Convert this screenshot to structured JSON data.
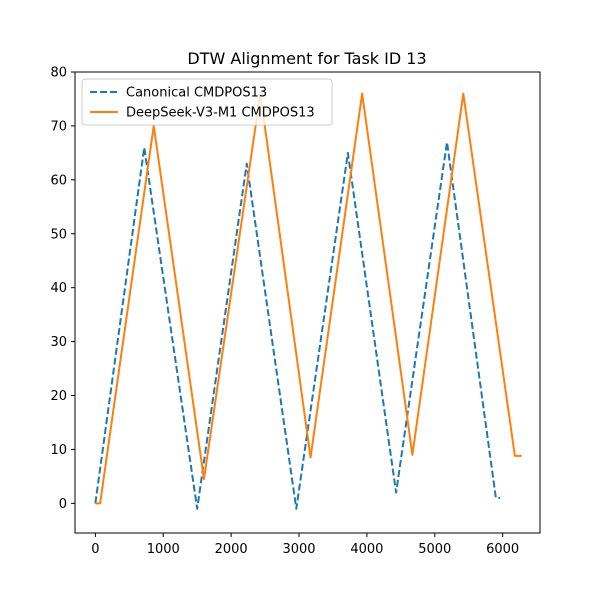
{
  "chart_data": {
    "type": "line",
    "title": "DTW Alignment for Task ID 13",
    "xlabel": "",
    "ylabel": "",
    "xlim": [
      -300,
      6550
    ],
    "ylim": [
      -5.5,
      80
    ],
    "xticks": [
      0,
      1000,
      2000,
      3000,
      4000,
      5000,
      6000
    ],
    "yticks": [
      0,
      10,
      20,
      30,
      40,
      50,
      60,
      70,
      80
    ],
    "grid": false,
    "legend_position": "top-left",
    "series": [
      {
        "name": "Canonical CMDPOS13",
        "color": "#1f77b4",
        "style": "dashed",
        "x": [
          0,
          720,
          1500,
          2230,
          2960,
          3720,
          4430,
          5180,
          5900,
          5960
        ],
        "y": [
          0,
          66,
          -1,
          63,
          -1,
          65,
          2,
          67,
          1,
          1
        ]
      },
      {
        "name": "DeepSeek-V3-M1 CMDPOS13",
        "color": "#ff7f0e",
        "style": "solid",
        "x": [
          0,
          70,
          860,
          1600,
          2430,
          3170,
          3930,
          4670,
          5420,
          6180,
          6280
        ],
        "y": [
          0,
          0,
          70,
          4.5,
          76,
          8.5,
          76,
          9,
          76,
          8.8,
          8.8
        ]
      }
    ]
  }
}
